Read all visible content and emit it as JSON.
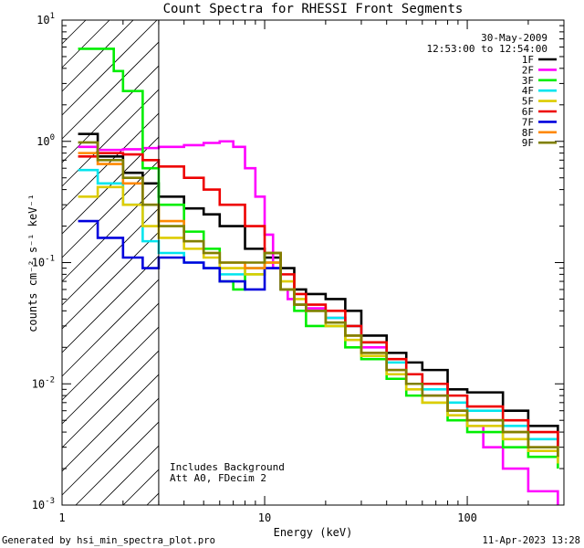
{
  "chart_data": {
    "type": "line",
    "title": "Count Spectra for RHESSI Front Segments",
    "xlabel": "Energy (keV)",
    "ylabel": "counts cm⁻² s⁻¹ keV⁻¹",
    "xscale": "log",
    "yscale": "log",
    "xlim": [
      1,
      300
    ],
    "ylim": [
      0.001,
      10
    ],
    "x_ticks": [
      {
        "value": 1,
        "label": "1"
      },
      {
        "value": 10,
        "label": "10"
      },
      {
        "value": 100,
        "label": "100"
      }
    ],
    "y_ticks": [
      {
        "value": 0.001,
        "base": "10",
        "exp": "-3"
      },
      {
        "value": 0.01,
        "base": "10",
        "exp": "-2"
      },
      {
        "value": 0.1,
        "base": "10",
        "exp": "-1"
      },
      {
        "value": 1,
        "base": "10",
        "exp": "0"
      },
      {
        "value": 10,
        "base": "10",
        "exp": "1"
      }
    ],
    "legend_position": "top-right",
    "date": "30-May-2009",
    "time_range": "12:53:00 to 12:54:00",
    "hatched_region_below_kev": 3,
    "annotations": [
      "Includes Background",
      "Att A0, FDecim 2"
    ],
    "series": [
      {
        "name": "1F",
        "color": "#000000",
        "x": [
          1.2,
          1.5,
          2,
          2.5,
          3,
          4,
          5,
          6,
          8,
          10,
          12,
          14,
          16,
          20,
          25,
          30,
          40,
          50,
          60,
          80,
          100,
          150,
          200,
          280
        ],
        "y": [
          1.15,
          0.75,
          0.55,
          0.45,
          0.35,
          0.28,
          0.25,
          0.2,
          0.13,
          0.11,
          0.09,
          0.06,
          0.055,
          0.05,
          0.04,
          0.025,
          0.018,
          0.015,
          0.013,
          0.009,
          0.0085,
          0.006,
          0.0045,
          0.003
        ]
      },
      {
        "name": "2F",
        "color": "#ff00ff",
        "x": [
          1.2,
          1.5,
          2,
          2.5,
          3,
          4,
          5,
          6,
          7,
          8,
          9,
          10,
          11,
          12,
          13,
          14,
          16,
          20,
          25,
          30,
          40,
          50,
          60,
          80,
          100,
          120,
          150,
          200,
          280
        ],
        "y": [
          0.9,
          0.85,
          0.86,
          0.88,
          0.9,
          0.93,
          0.97,
          1.0,
          0.9,
          0.6,
          0.35,
          0.17,
          0.09,
          0.06,
          0.05,
          0.045,
          0.042,
          0.035,
          0.03,
          0.02,
          0.013,
          0.01,
          0.008,
          0.006,
          0.0045,
          0.003,
          0.002,
          0.0013,
          0.001
        ]
      },
      {
        "name": "3F",
        "color": "#00ee00",
        "x": [
          1.2,
          1.5,
          1.8,
          2,
          2.5,
          3,
          4,
          5,
          6,
          7,
          8,
          10,
          12,
          14,
          16,
          20,
          25,
          30,
          40,
          50,
          60,
          80,
          100,
          150,
          200,
          280
        ],
        "y": [
          5.8,
          5.8,
          3.8,
          2.6,
          0.6,
          0.3,
          0.18,
          0.13,
          0.07,
          0.06,
          0.08,
          0.12,
          0.06,
          0.04,
          0.03,
          0.03,
          0.02,
          0.016,
          0.011,
          0.008,
          0.007,
          0.005,
          0.004,
          0.003,
          0.0025,
          0.002
        ]
      },
      {
        "name": "4F",
        "color": "#00e5ee",
        "x": [
          1.2,
          1.5,
          2,
          2.5,
          3,
          4,
          5,
          6,
          8,
          10,
          12,
          14,
          16,
          20,
          25,
          30,
          40,
          50,
          60,
          80,
          100,
          150,
          200,
          280
        ],
        "y": [
          0.58,
          0.45,
          0.3,
          0.15,
          0.12,
          0.1,
          0.09,
          0.08,
          0.09,
          0.1,
          0.06,
          0.045,
          0.04,
          0.035,
          0.03,
          0.022,
          0.015,
          0.012,
          0.009,
          0.007,
          0.006,
          0.0045,
          0.0035,
          0.0028
        ]
      },
      {
        "name": "5F",
        "color": "#ddcc00",
        "x": [
          1.2,
          1.5,
          2,
          2.5,
          3,
          4,
          5,
          6,
          8,
          10,
          12,
          14,
          16,
          20,
          25,
          30,
          40,
          50,
          60,
          80,
          100,
          150,
          200,
          280
        ],
        "y": [
          0.35,
          0.42,
          0.3,
          0.2,
          0.16,
          0.13,
          0.11,
          0.09,
          0.08,
          0.1,
          0.07,
          0.05,
          0.04,
          0.03,
          0.023,
          0.017,
          0.012,
          0.009,
          0.007,
          0.0055,
          0.0045,
          0.0035,
          0.0028,
          0.0022
        ]
      },
      {
        "name": "6F",
        "color": "#ee0000",
        "x": [
          1.2,
          1.5,
          2,
          2.5,
          3,
          4,
          5,
          6,
          8,
          10,
          12,
          14,
          16,
          20,
          25,
          30,
          40,
          50,
          60,
          80,
          100,
          150,
          200,
          280
        ],
        "y": [
          0.75,
          0.8,
          0.78,
          0.7,
          0.62,
          0.5,
          0.4,
          0.3,
          0.2,
          0.12,
          0.08,
          0.055,
          0.045,
          0.04,
          0.03,
          0.022,
          0.016,
          0.012,
          0.01,
          0.008,
          0.0065,
          0.005,
          0.004,
          0.003
        ]
      },
      {
        "name": "7F",
        "color": "#0000dd",
        "x": [
          1.2,
          1.5,
          2,
          2.5,
          3,
          4,
          5,
          6,
          8,
          10,
          12
        ],
        "y": [
          0.22,
          0.16,
          0.11,
          0.09,
          0.11,
          0.1,
          0.09,
          0.07,
          0.06,
          0.09,
          0.06
        ]
      },
      {
        "name": "8F",
        "color": "#ff8800",
        "x": [
          1.2,
          1.5,
          2,
          2.5,
          3,
          4,
          5,
          6,
          8,
          10,
          12,
          14,
          16,
          20,
          25,
          30,
          40,
          50,
          60,
          80,
          100,
          150,
          200,
          280
        ],
        "y": [
          0.8,
          0.65,
          0.45,
          0.3,
          0.22,
          0.15,
          0.12,
          0.1,
          0.09,
          0.1,
          0.06,
          0.045,
          0.04,
          0.032,
          0.025,
          0.018,
          0.013,
          0.01,
          0.008,
          0.006,
          0.005,
          0.004,
          0.003,
          0.0025
        ]
      },
      {
        "name": "9F",
        "color": "#808000",
        "x": [
          1.2,
          1.5,
          2,
          2.5,
          3,
          4,
          5,
          6,
          8,
          10,
          12,
          14,
          16,
          20,
          25,
          30,
          40,
          50,
          60,
          80,
          100,
          150,
          200,
          280
        ],
        "y": [
          0.98,
          0.7,
          0.5,
          0.3,
          0.2,
          0.15,
          0.12,
          0.1,
          0.1,
          0.12,
          0.06,
          0.045,
          0.04,
          0.032,
          0.025,
          0.018,
          0.013,
          0.01,
          0.008,
          0.006,
          0.005,
          0.004,
          0.003,
          0.0025
        ]
      }
    ]
  },
  "footer": {
    "generator": "Generated by hsi_min_spectra_plot.pro",
    "timestamp": "11-Apr-2023 13:28"
  }
}
